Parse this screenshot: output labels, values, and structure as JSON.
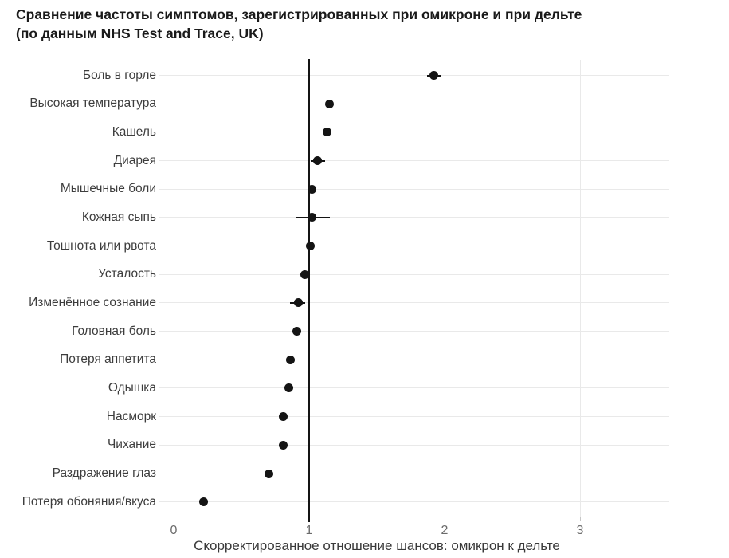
{
  "chart": {
    "title_line1": "Сравнение частоты симптомов, зарегистрированных при омикроне и при дельте",
    "title_line2": "(по данным NHS Test and Trace, UK)"
  },
  "chart_data": {
    "type": "scatter",
    "subtype": "dot-plot-with-error-bars",
    "title": "Сравнение частоты симптомов, зарегистрированных при омикроне и при дельте (по данным NHS Test and Trace, UK)",
    "xlabel": "Скорректированное отношение шансов: омикрон к дельте",
    "ylabel": "",
    "xlim": [
      0,
      3.66
    ],
    "xticks": [
      0,
      1,
      2,
      3
    ],
    "reference_line_x": 1,
    "grid": true,
    "legend": "none",
    "categories": [
      "Боль в горле",
      "Высокая температура",
      "Кашель",
      "Диарея",
      "Мышечные боли",
      "Кожная сыпь",
      "Тошнота или рвота",
      "Усталость",
      "Изменённое сознание",
      "Головная боль",
      "Потеря аппетита",
      "Одышка",
      "Насморк",
      "Чихание",
      "Раздражение глаз",
      "Потеря обоняния/вкуса"
    ],
    "values": [
      1.92,
      1.15,
      1.13,
      1.06,
      1.02,
      1.02,
      1.01,
      0.97,
      0.92,
      0.91,
      0.86,
      0.85,
      0.81,
      0.81,
      0.7,
      0.22
    ],
    "ci_low": [
      1.87,
      null,
      null,
      1.01,
      null,
      0.9,
      null,
      null,
      0.86,
      null,
      null,
      null,
      null,
      null,
      null,
      null
    ],
    "ci_high": [
      1.97,
      null,
      null,
      1.12,
      null,
      1.15,
      null,
      null,
      0.97,
      null,
      null,
      null,
      null,
      null,
      null,
      null
    ],
    "colors": {
      "point": "#141414",
      "reference_line": "#141414",
      "grid": "#e9e9e9",
      "background": "#ffffff",
      "title_text": "#1a1a1a",
      "label_text": "#3d3d3d",
      "tick_text": "#6b6b6b"
    }
  }
}
